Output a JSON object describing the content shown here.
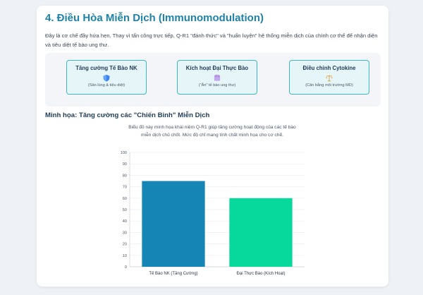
{
  "section": {
    "title": "4. Điều Hòa Miễn Dịch (Immunomodulation)",
    "intro": "Đây là cơ chế đầy hứa hẹn. Thay vì tấn công trực tiếp, Q-R1 \"đánh thức\" và \"huấn luyện\" hệ thống miễn dịch của chính cơ thể để nhận diện và tiêu diệt tế bào ung thư."
  },
  "mechanisms": [
    {
      "title": "Tăng cường Tế Bào NK",
      "icon": "shield-icon",
      "description": "(Săn lùng & tiêu diệt)",
      "icon_color": "#3b82f6"
    },
    {
      "title": "Kích hoạt Đại Thực Bào",
      "icon": "hand-icon",
      "description": "(\"Ăn\" tế bào ung thư)",
      "icon_color": "#c4a8ee"
    },
    {
      "title": "Điều chỉnh Cytokine",
      "icon": "balance-scale-icon",
      "description": "(Cân bằng môi trường MD)",
      "icon_color": "#d8a24a"
    }
  ],
  "chart_section": {
    "heading": "Minh họa: Tăng cường các \"Chiến Binh\" Miễn Dịch",
    "description": "Biểu đồ này minh họa khái niệm Q-R1 giúp tăng cường hoạt động của các tế bào miễn dịch chủ chốt. Mức độ chỉ mang tính chất minh họa cho cơ chế."
  },
  "chart_data": {
    "type": "bar",
    "categories": [
      "Tế Bào NK (Tăng Cường)",
      "Đại Thực Bào (Kích Hoạt)"
    ],
    "values": [
      75,
      60
    ],
    "ylim": [
      0,
      100
    ],
    "yticks": [
      0,
      10,
      20,
      30,
      40,
      50,
      60,
      70,
      80,
      90,
      100
    ],
    "colors": [
      "#1585b5",
      "#07d89b"
    ],
    "grid": true,
    "legend": "none",
    "title": "",
    "xlabel": "",
    "ylabel": ""
  }
}
